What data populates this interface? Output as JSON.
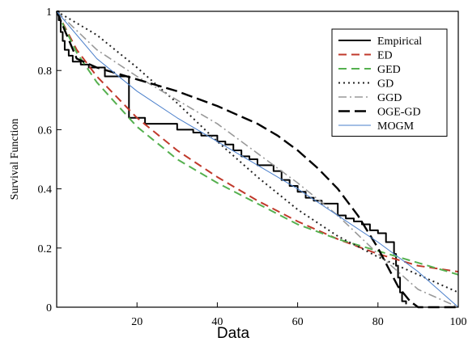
{
  "chart_data": {
    "type": "line",
    "xlabel": "Data",
    "ylabel": "Survival Function",
    "xlim": [
      0,
      100
    ],
    "ylim": [
      0,
      1
    ],
    "x_ticks": [
      "20",
      "40",
      "60",
      "80",
      "100"
    ],
    "y_ticks": [
      "0",
      "0.2",
      "0.4",
      "0.6",
      "0.8",
      "1"
    ],
    "legend_position": "top-right",
    "series": [
      {
        "name": "Empirical",
        "color": "#000000",
        "style": "step",
        "x": [
          0,
          0.5,
          1,
          1.5,
          2,
          3,
          4,
          6,
          8,
          12,
          18,
          22,
          30,
          34,
          36,
          40,
          42,
          44,
          46,
          48,
          50,
          54,
          56,
          58,
          60,
          62,
          64,
          66,
          70,
          72,
          74,
          76,
          78,
          80,
          82,
          84,
          84.5,
          85,
          85.5,
          86,
          87
        ],
        "y": [
          1,
          0.97,
          0.93,
          0.9,
          0.87,
          0.85,
          0.83,
          0.82,
          0.81,
          0.78,
          0.64,
          0.62,
          0.6,
          0.59,
          0.58,
          0.56,
          0.55,
          0.53,
          0.51,
          0.5,
          0.48,
          0.46,
          0.43,
          0.41,
          0.39,
          0.37,
          0.36,
          0.35,
          0.31,
          0.3,
          0.29,
          0.28,
          0.26,
          0.25,
          0.22,
          0.18,
          0.14,
          0.1,
          0.05,
          0.02,
          0.01
        ]
      },
      {
        "name": "ED",
        "color": "#c0392b",
        "style": "dashed",
        "x": [
          0,
          5,
          10,
          20,
          30,
          40,
          50,
          60,
          70,
          80,
          90,
          100
        ],
        "y": [
          1,
          0.87,
          0.78,
          0.64,
          0.53,
          0.44,
          0.36,
          0.29,
          0.23,
          0.18,
          0.14,
          0.12
        ]
      },
      {
        "name": "GED",
        "color": "#55b04f",
        "style": "dashed",
        "x": [
          0,
          5,
          10,
          20,
          30,
          40,
          50,
          60,
          70,
          80,
          90,
          100
        ],
        "y": [
          1,
          0.86,
          0.76,
          0.61,
          0.5,
          0.42,
          0.35,
          0.28,
          0.23,
          0.19,
          0.15,
          0.11
        ]
      },
      {
        "name": "GD",
        "color": "#222222",
        "style": "dotted",
        "x": [
          0,
          10,
          20,
          30,
          40,
          50,
          60,
          70,
          80,
          90,
          100
        ],
        "y": [
          1,
          0.92,
          0.81,
          0.69,
          0.56,
          0.44,
          0.33,
          0.24,
          0.17,
          0.11,
          0.05
        ]
      },
      {
        "name": "GGD",
        "color": "#999999",
        "style": "dashdot",
        "x": [
          0,
          10,
          20,
          30,
          40,
          50,
          60,
          70,
          80,
          90,
          100
        ],
        "y": [
          1,
          0.87,
          0.78,
          0.7,
          0.62,
          0.52,
          0.42,
          0.31,
          0.18,
          0.06,
          0.0
        ]
      },
      {
        "name": "OGE-GD",
        "color": "#000000",
        "style": "longdash",
        "x": [
          0,
          5,
          10,
          20,
          30,
          40,
          50,
          55,
          60,
          65,
          70,
          75,
          80,
          85,
          88,
          90,
          100
        ],
        "y": [
          1,
          0.84,
          0.81,
          0.77,
          0.73,
          0.68,
          0.62,
          0.58,
          0.53,
          0.47,
          0.4,
          0.31,
          0.2,
          0.07,
          0.02,
          0.0,
          0.0
        ]
      },
      {
        "name": "MOGM",
        "color": "#4a7fcb",
        "style": "solid-thin",
        "x": [
          0,
          10,
          20,
          30,
          40,
          50,
          60,
          70,
          80,
          90,
          100
        ],
        "y": [
          1,
          0.84,
          0.73,
          0.64,
          0.56,
          0.48,
          0.4,
          0.31,
          0.22,
          0.12,
          0.0
        ]
      }
    ]
  }
}
